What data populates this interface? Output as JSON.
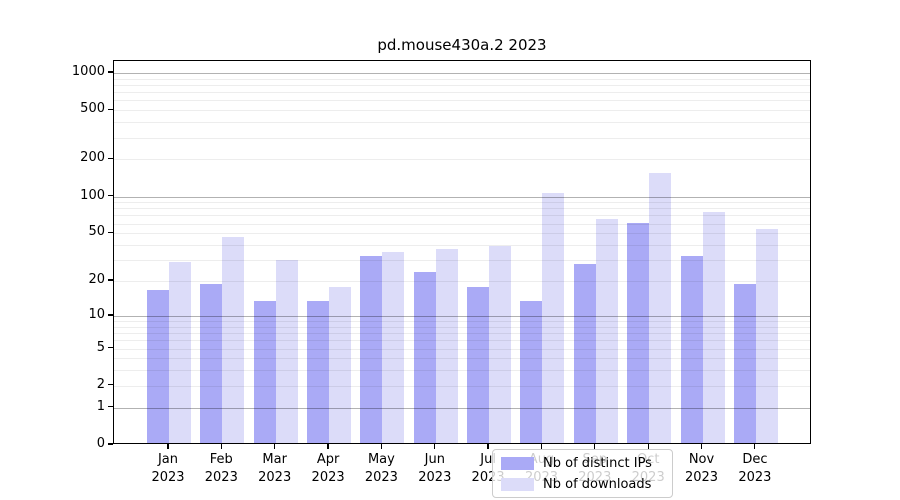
{
  "chart_data": {
    "type": "bar",
    "title": "pd.mouse430a.2 2023",
    "categories": [
      "Jan 2023",
      "Feb 2023",
      "Mar 2023",
      "Apr 2023",
      "May 2023",
      "Jun 2023",
      "Jul 2023",
      "Aug 2023",
      "Sep 2023",
      "Oct 2023",
      "Nov 2023",
      "Dec 2023"
    ],
    "series": [
      {
        "name": "Nb of distinct IPs",
        "color": "#aaaaf6",
        "values": [
          16,
          18,
          13,
          13,
          31,
          23,
          17,
          13,
          27,
          58,
          31,
          18
        ]
      },
      {
        "name": "Nb of downloads",
        "color": "#dcdcf9",
        "values": [
          28,
          45,
          29,
          17,
          34,
          36,
          38,
          102,
          63,
          150,
          72,
          52
        ]
      }
    ],
    "xlabel": "",
    "ylabel": "",
    "yscale": "log10(1+y)",
    "ylim": [
      0,
      1250
    ],
    "yticks": [
      0,
      1,
      2,
      5,
      10,
      20,
      50,
      100,
      200,
      500,
      1000
    ],
    "grid": true,
    "grid_major": [
      1,
      10,
      100,
      1000
    ],
    "grid_minor": [
      2,
      3,
      4,
      5,
      6,
      7,
      8,
      9,
      20,
      30,
      40,
      50,
      60,
      70,
      80,
      90,
      200,
      300,
      400,
      500,
      600,
      700,
      800,
      900
    ],
    "legend_position": "lower center"
  },
  "colors": {
    "background": "#ffffff",
    "spine": "#000000",
    "grid_major": "rgba(0,0,0,0.30)",
    "grid_minor": "rgba(0,0,0,0.07)",
    "legend_border": "#cccccc",
    "legend_background": "rgba(255,255,255,0.8)"
  }
}
